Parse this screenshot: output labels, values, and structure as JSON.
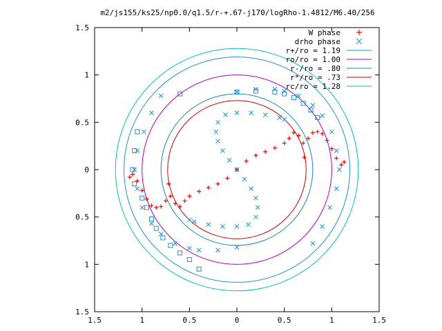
{
  "chart_data": {
    "type": "scatter",
    "title": "m2/js155/ks25/np0.0/q1.5/r-+.67-j170/logRho-1.4812/M6.40/256",
    "xlabel": "",
    "ylabel": "",
    "xlim": [
      -1.5,
      1.5
    ],
    "ylim": [
      -1.5,
      1.5
    ],
    "grid": false,
    "legend_position": "top-right",
    "x_ticks": [
      {
        "value": -1.5,
        "label": "1.5"
      },
      {
        "value": -1.0,
        "label": "1"
      },
      {
        "value": -0.5,
        "label": "0.5"
      },
      {
        "value": 0.0,
        "label": "0"
      },
      {
        "value": 0.5,
        "label": "0.5"
      },
      {
        "value": 1.0,
        "label": "1"
      },
      {
        "value": 1.5,
        "label": "1.5"
      }
    ],
    "y_ticks": [
      {
        "value": 1.5,
        "label": "1.5"
      },
      {
        "value": 1.0,
        "label": "1"
      },
      {
        "value": 0.5,
        "label": "0.5"
      },
      {
        "value": 0.0,
        "label": "0"
      },
      {
        "value": -0.5,
        "label": "0.5"
      },
      {
        "value": -1.0,
        "label": "1"
      },
      {
        "value": -1.5,
        "label": "1.5"
      }
    ],
    "circles": [
      {
        "name": "r+/ro = 1.19",
        "radius": 1.19,
        "color": "#1a8fd6"
      },
      {
        "name": "ro/ro = 1.00",
        "radius": 1.0,
        "color": "#b000c0"
      },
      {
        "name": "r-/ro = .80",
        "radius": 0.8,
        "color": "#1a7fc0"
      },
      {
        "name": "r*/ro = .73",
        "radius": 0.73,
        "color": "#d00000"
      },
      {
        "name": "rc/ro = 1.28",
        "radius": 1.28,
        "color": "#00c0c0"
      }
    ],
    "series": [
      {
        "name": "W phase",
        "marker": "plus",
        "color": "#ff0000",
        "x": [
          0.0,
          0.1,
          0.2,
          0.3,
          0.4,
          0.5,
          0.55,
          0.6,
          0.65,
          0.7,
          0.75,
          0.8,
          0.85,
          0.9,
          0.95,
          1.0,
          1.05,
          1.1,
          1.13,
          0.0,
          -0.1,
          -0.2,
          -0.3,
          -0.4,
          -0.5,
          -0.55,
          -0.6,
          -0.65,
          -0.7,
          -0.75,
          -0.8,
          -0.85,
          -0.9,
          -0.95,
          -1.0,
          -1.05,
          -1.1,
          -1.13,
          0.71,
          -0.72
        ],
        "y": [
          0.0,
          0.09,
          0.15,
          0.19,
          0.23,
          0.28,
          0.33,
          0.39,
          0.36,
          0.28,
          0.33,
          0.39,
          0.4,
          0.38,
          0.31,
          0.22,
          0.12,
          0.05,
          0.08,
          0.0,
          -0.09,
          -0.15,
          -0.19,
          -0.23,
          -0.28,
          -0.33,
          -0.39,
          -0.36,
          -0.28,
          -0.33,
          -0.39,
          -0.4,
          -0.38,
          -0.31,
          -0.22,
          -0.12,
          -0.05,
          -0.08,
          0.13,
          -0.15
        ]
      },
      {
        "name": "drho phase",
        "marker": "cross",
        "color": "#1a8fd6",
        "x": [
          0.0,
          -0.08,
          -0.15,
          -0.2,
          -0.22,
          -0.2,
          -0.12,
          0.0,
          0.15,
          0.3,
          0.45,
          0.5,
          0.0,
          0.08,
          0.15,
          0.2,
          0.22,
          0.2,
          0.12,
          0.0,
          -0.15,
          -0.3,
          -0.45,
          -0.5,
          0.0,
          0.2,
          0.4,
          0.5,
          0.65,
          0.8,
          0.9,
          1.0,
          1.05,
          1.08,
          1.05,
          0.98,
          0.9,
          0.8,
          0.0,
          -0.2,
          -0.4,
          -0.5,
          -0.65,
          -0.8,
          -0.9,
          -1.0,
          -1.05,
          -1.08,
          -1.05,
          -0.98,
          -0.9,
          -0.8
        ],
        "y": [
          0.0,
          0.1,
          0.2,
          0.3,
          0.4,
          0.5,
          0.58,
          0.6,
          0.6,
          0.58,
          0.55,
          0.53,
          0.0,
          -0.1,
          -0.2,
          -0.3,
          -0.4,
          -0.5,
          -0.58,
          -0.6,
          -0.6,
          -0.58,
          -0.55,
          -0.53,
          0.82,
          0.85,
          0.85,
          0.83,
          0.78,
          0.68,
          0.57,
          0.4,
          0.2,
          0.0,
          -0.2,
          -0.4,
          -0.6,
          -0.78,
          -0.82,
          -0.85,
          -0.85,
          -0.83,
          -0.78,
          -0.68,
          -0.57,
          -0.4,
          -0.2,
          0.0,
          0.2,
          0.4,
          0.6,
          0.78
        ]
      },
      {
        "name": "",
        "marker": "square",
        "color": "#1a8fd6",
        "x": [
          -1.0,
          -0.95,
          -0.9,
          -0.85,
          -0.78,
          -0.7,
          -0.6,
          -0.5,
          -0.4,
          -1.05,
          -1.08,
          -1.1,
          -1.08,
          -0.6,
          0.0,
          0.2,
          0.4,
          0.5,
          0.6,
          0.7,
          0.78,
          0.85
        ],
        "y": [
          -0.3,
          -0.4,
          -0.52,
          -0.62,
          -0.72,
          -0.8,
          -0.88,
          -0.95,
          -1.05,
          0.4,
          0.2,
          0.0,
          -0.15,
          0.8,
          0.82,
          0.83,
          0.82,
          0.8,
          0.76,
          0.7,
          0.63,
          0.55
        ]
      }
    ],
    "legend": [
      {
        "label": "W phase",
        "kind": "marker",
        "marker": "plus",
        "color": "#ff0000"
      },
      {
        "label": "drho phase",
        "kind": "marker",
        "marker": "cross",
        "color": "#1a8fd6"
      },
      {
        "label": "r+/ro = 1.19",
        "kind": "line",
        "color": "#1a8fd6"
      },
      {
        "label": "ro/ro = 1.00",
        "kind": "line",
        "color": "#b000c0"
      },
      {
        "label": "r-/ro = .80",
        "kind": "line",
        "color": "#1a7fc0"
      },
      {
        "label": "r*/ro = .73",
        "kind": "line",
        "color": "#d00000"
      },
      {
        "label": "rc/ro = 1.28",
        "kind": "line",
        "color": "#00c0c0"
      }
    ]
  }
}
